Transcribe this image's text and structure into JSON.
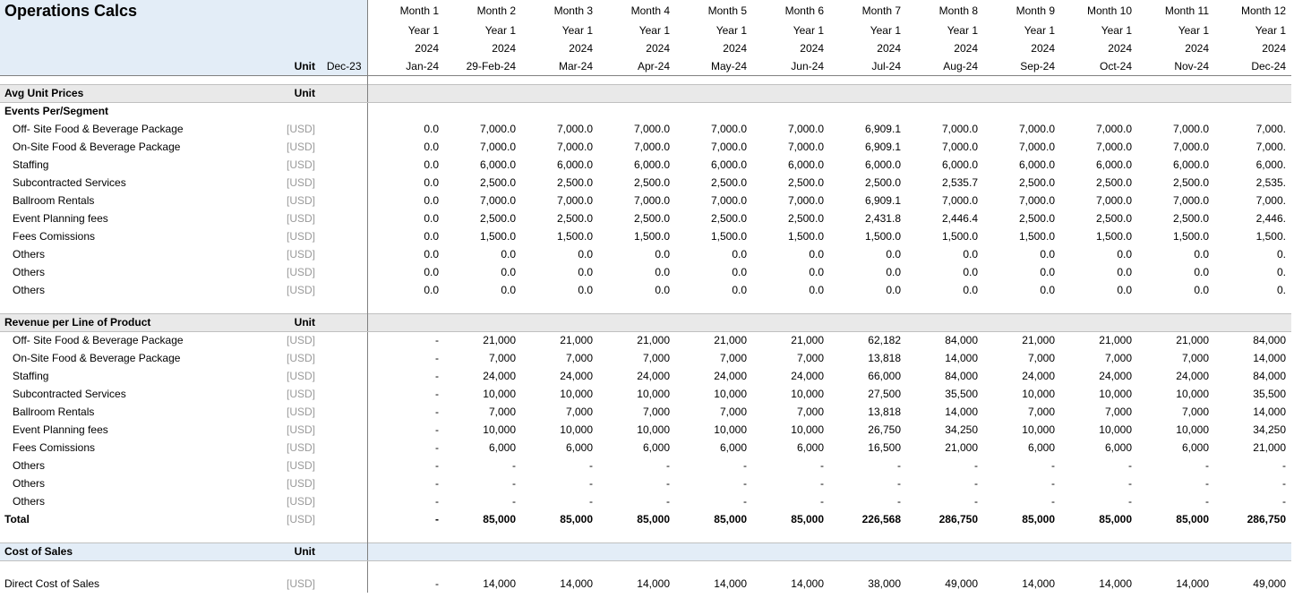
{
  "title": "Operations Calcs",
  "unitColHeader": "Unit",
  "baseColHeader": "Dec-23",
  "columns": [
    {
      "month": "Month 1",
      "year": "Year 1",
      "yearNum": "2024",
      "label": "Jan-24"
    },
    {
      "month": "Month 2",
      "year": "Year 1",
      "yearNum": "2024",
      "label": "29-Feb-24"
    },
    {
      "month": "Month 3",
      "year": "Year 1",
      "yearNum": "2024",
      "label": "Mar-24"
    },
    {
      "month": "Month 4",
      "year": "Year 1",
      "yearNum": "2024",
      "label": "Apr-24"
    },
    {
      "month": "Month 5",
      "year": "Year 1",
      "yearNum": "2024",
      "label": "May-24"
    },
    {
      "month": "Month 6",
      "year": "Year 1",
      "yearNum": "2024",
      "label": "Jun-24"
    },
    {
      "month": "Month 7",
      "year": "Year 1",
      "yearNum": "2024",
      "label": "Jul-24"
    },
    {
      "month": "Month 8",
      "year": "Year 1",
      "yearNum": "2024",
      "label": "Aug-24"
    },
    {
      "month": "Month 9",
      "year": "Year 1",
      "yearNum": "2024",
      "label": "Sep-24"
    },
    {
      "month": "Month 10",
      "year": "Year 1",
      "yearNum": "2024",
      "label": "Oct-24"
    },
    {
      "month": "Month 11",
      "year": "Year 1",
      "yearNum": "2024",
      "label": "Nov-24"
    },
    {
      "month": "Month 12",
      "year": "Year 1",
      "yearNum": "2024",
      "label": "Dec-24"
    }
  ],
  "sections": [
    {
      "type": "section-hdr",
      "label": "Avg Unit Prices",
      "unit": "Unit",
      "groups": [
        {
          "label": "Events Per/Segment",
          "rows": [
            {
              "label": "Off- Site Food & Beverage Package",
              "unit": "[USD]",
              "base": "",
              "vals": [
                "0.0",
                "7,000.0",
                "7,000.0",
                "7,000.0",
                "7,000.0",
                "7,000.0",
                "6,909.1",
                "7,000.0",
                "7,000.0",
                "7,000.0",
                "7,000.0",
                "7,000."
              ]
            },
            {
              "label": "On-Site Food & Beverage Package",
              "unit": "[USD]",
              "base": "",
              "vals": [
                "0.0",
                "7,000.0",
                "7,000.0",
                "7,000.0",
                "7,000.0",
                "7,000.0",
                "6,909.1",
                "7,000.0",
                "7,000.0",
                "7,000.0",
                "7,000.0",
                "7,000."
              ]
            },
            {
              "label": "Staffing",
              "unit": "[USD]",
              "base": "",
              "vals": [
                "0.0",
                "6,000.0",
                "6,000.0",
                "6,000.0",
                "6,000.0",
                "6,000.0",
                "6,000.0",
                "6,000.0",
                "6,000.0",
                "6,000.0",
                "6,000.0",
                "6,000."
              ]
            },
            {
              "label": "Subcontracted Services",
              "unit": "[USD]",
              "base": "",
              "vals": [
                "0.0",
                "2,500.0",
                "2,500.0",
                "2,500.0",
                "2,500.0",
                "2,500.0",
                "2,500.0",
                "2,535.7",
                "2,500.0",
                "2,500.0",
                "2,500.0",
                "2,535."
              ]
            },
            {
              "label": "Ballroom Rentals",
              "unit": "[USD]",
              "base": "",
              "vals": [
                "0.0",
                "7,000.0",
                "7,000.0",
                "7,000.0",
                "7,000.0",
                "7,000.0",
                "6,909.1",
                "7,000.0",
                "7,000.0",
                "7,000.0",
                "7,000.0",
                "7,000."
              ]
            },
            {
              "label": "Event Planning fees",
              "unit": "[USD]",
              "base": "",
              "vals": [
                "0.0",
                "2,500.0",
                "2,500.0",
                "2,500.0",
                "2,500.0",
                "2,500.0",
                "2,431.8",
                "2,446.4",
                "2,500.0",
                "2,500.0",
                "2,500.0",
                "2,446."
              ]
            },
            {
              "label": "Fees Comissions",
              "unit": "[USD]",
              "base": "",
              "vals": [
                "0.0",
                "1,500.0",
                "1,500.0",
                "1,500.0",
                "1,500.0",
                "1,500.0",
                "1,500.0",
                "1,500.0",
                "1,500.0",
                "1,500.0",
                "1,500.0",
                "1,500."
              ]
            },
            {
              "label": "Others",
              "unit": "[USD]",
              "base": "",
              "vals": [
                "0.0",
                "0.0",
                "0.0",
                "0.0",
                "0.0",
                "0.0",
                "0.0",
                "0.0",
                "0.0",
                "0.0",
                "0.0",
                "0."
              ]
            },
            {
              "label": "Others",
              "unit": "[USD]",
              "base": "",
              "vals": [
                "0.0",
                "0.0",
                "0.0",
                "0.0",
                "0.0",
                "0.0",
                "0.0",
                "0.0",
                "0.0",
                "0.0",
                "0.0",
                "0."
              ]
            },
            {
              "label": "Others",
              "unit": "[USD]",
              "base": "",
              "vals": [
                "0.0",
                "0.0",
                "0.0",
                "0.0",
                "0.0",
                "0.0",
                "0.0",
                "0.0",
                "0.0",
                "0.0",
                "0.0",
                "0."
              ]
            }
          ]
        }
      ]
    },
    {
      "type": "section-hdr",
      "label": "Revenue per Line of Product",
      "unit": "Unit",
      "groups": [
        {
          "label": null,
          "rows": [
            {
              "label": "Off- Site Food & Beverage Package",
              "unit": "[USD]",
              "base": "",
              "vals": [
                "-",
                "21,000",
                "21,000",
                "21,000",
                "21,000",
                "21,000",
                "62,182",
                "84,000",
                "21,000",
                "21,000",
                "21,000",
                "84,000"
              ]
            },
            {
              "label": "On-Site Food & Beverage Package",
              "unit": "[USD]",
              "base": "",
              "vals": [
                "-",
                "7,000",
                "7,000",
                "7,000",
                "7,000",
                "7,000",
                "13,818",
                "14,000",
                "7,000",
                "7,000",
                "7,000",
                "14,000"
              ]
            },
            {
              "label": "Staffing",
              "unit": "[USD]",
              "base": "",
              "vals": [
                "-",
                "24,000",
                "24,000",
                "24,000",
                "24,000",
                "24,000",
                "66,000",
                "84,000",
                "24,000",
                "24,000",
                "24,000",
                "84,000"
              ]
            },
            {
              "label": "Subcontracted Services",
              "unit": "[USD]",
              "base": "",
              "vals": [
                "-",
                "10,000",
                "10,000",
                "10,000",
                "10,000",
                "10,000",
                "27,500",
                "35,500",
                "10,000",
                "10,000",
                "10,000",
                "35,500"
              ]
            },
            {
              "label": "Ballroom Rentals",
              "unit": "[USD]",
              "base": "",
              "vals": [
                "-",
                "7,000",
                "7,000",
                "7,000",
                "7,000",
                "7,000",
                "13,818",
                "14,000",
                "7,000",
                "7,000",
                "7,000",
                "14,000"
              ]
            },
            {
              "label": "Event Planning fees",
              "unit": "[USD]",
              "base": "",
              "vals": [
                "-",
                "10,000",
                "10,000",
                "10,000",
                "10,000",
                "10,000",
                "26,750",
                "34,250",
                "10,000",
                "10,000",
                "10,000",
                "34,250"
              ]
            },
            {
              "label": "Fees Comissions",
              "unit": "[USD]",
              "base": "",
              "vals": [
                "-",
                "6,000",
                "6,000",
                "6,000",
                "6,000",
                "6,000",
                "16,500",
                "21,000",
                "6,000",
                "6,000",
                "6,000",
                "21,000"
              ]
            },
            {
              "label": "Others",
              "unit": "[USD]",
              "base": "",
              "vals": [
                "-",
                "-",
                "-",
                "-",
                "-",
                "-",
                "-",
                "-",
                "-",
                "-",
                "-",
                "-"
              ]
            },
            {
              "label": "Others",
              "unit": "[USD]",
              "base": "",
              "vals": [
                "-",
                "-",
                "-",
                "-",
                "-",
                "-",
                "-",
                "-",
                "-",
                "-",
                "-",
                "-"
              ]
            },
            {
              "label": "Others",
              "unit": "[USD]",
              "base": "",
              "vals": [
                "-",
                "-",
                "-",
                "-",
                "-",
                "-",
                "-",
                "-",
                "-",
                "-",
                "-",
                "-"
              ]
            }
          ],
          "total": {
            "label": "Total",
            "unit": "[USD]",
            "base": "",
            "vals": [
              "-",
              "85,000",
              "85,000",
              "85,000",
              "85,000",
              "85,000",
              "226,568",
              "286,750",
              "85,000",
              "85,000",
              "85,000",
              "286,750"
            ]
          }
        }
      ]
    },
    {
      "type": "section-blue",
      "label": "Cost of Sales",
      "unit": "Unit",
      "groups": [
        {
          "label": null,
          "preSpacer": true,
          "rows": [
            {
              "label": "Direct Cost of Sales",
              "unit": "[USD]",
              "base": "",
              "vals": [
                "-",
                "14,000",
                "14,000",
                "14,000",
                "14,000",
                "14,000",
                "38,000",
                "49,000",
                "14,000",
                "14,000",
                "14,000",
                "49,000"
              ],
              "noIndent": true
            }
          ]
        }
      ]
    }
  ]
}
